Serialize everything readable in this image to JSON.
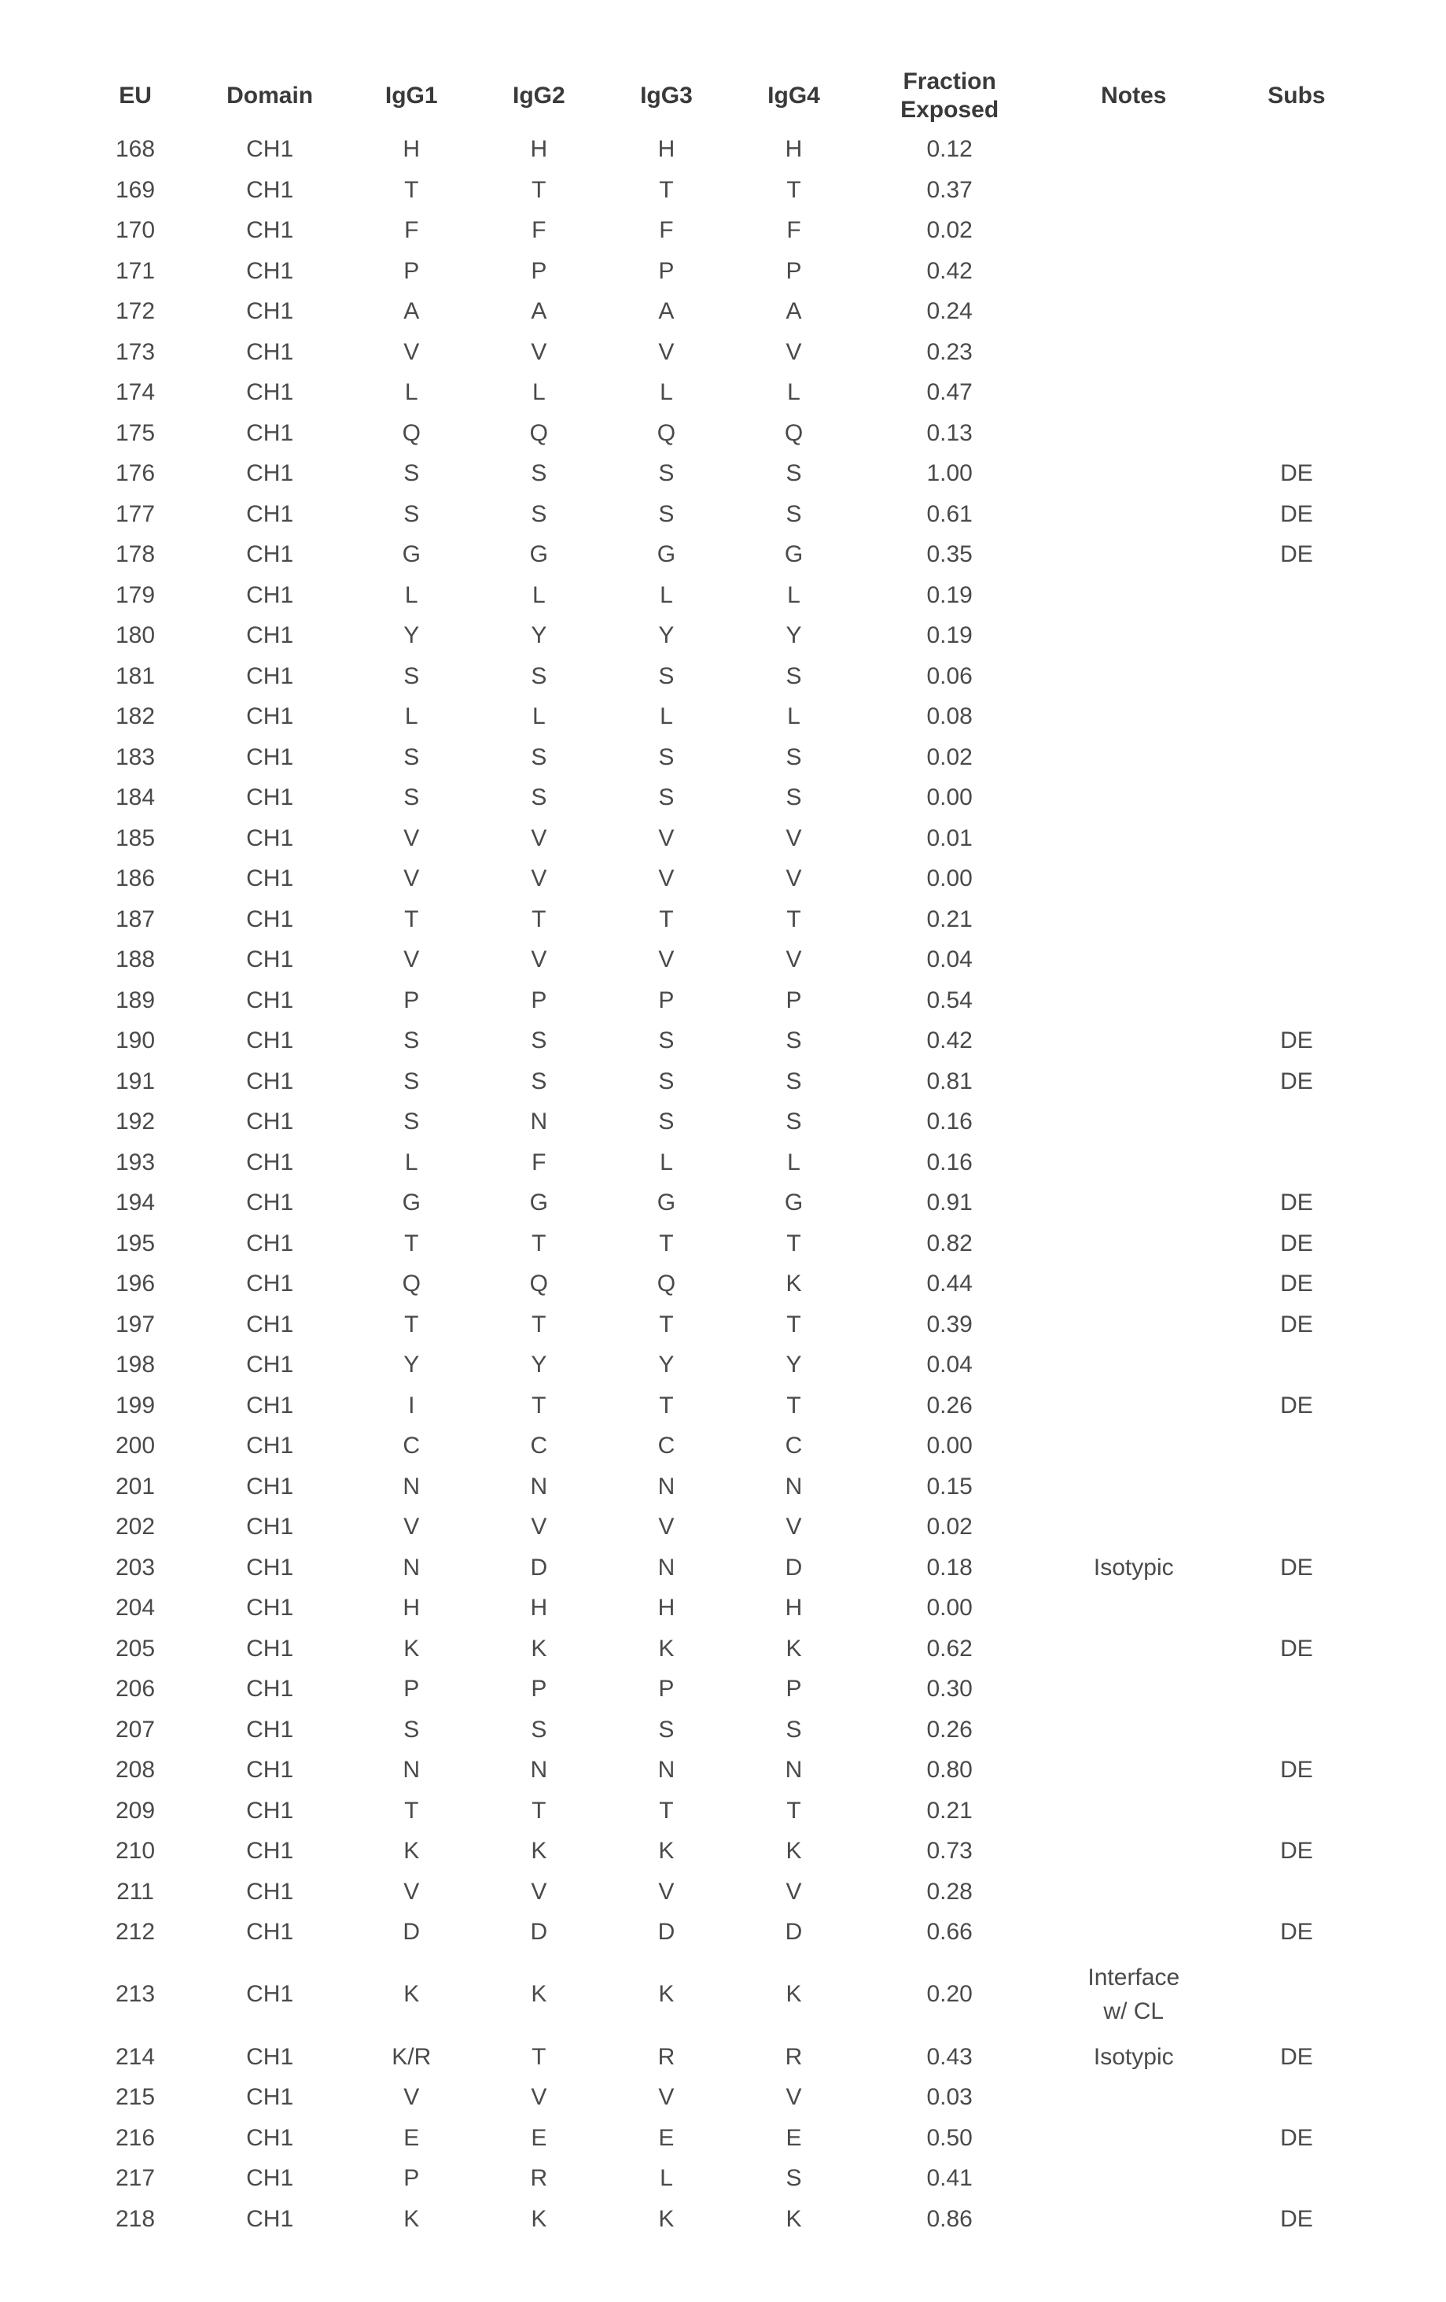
{
  "columns": [
    "EU",
    "Domain",
    "IgG1",
    "IgG2",
    "IgG3",
    "IgG4",
    "Fraction\nExposed",
    "Notes",
    "Subs"
  ],
  "rows": [
    {
      "eu": "168",
      "domain": "CH1",
      "igg1": "H",
      "igg2": "H",
      "igg3": "H",
      "igg4": "H",
      "frac": "0.12",
      "notes": "",
      "subs": ""
    },
    {
      "eu": "169",
      "domain": "CH1",
      "igg1": "T",
      "igg2": "T",
      "igg3": "T",
      "igg4": "T",
      "frac": "0.37",
      "notes": "",
      "subs": ""
    },
    {
      "eu": "170",
      "domain": "CH1",
      "igg1": "F",
      "igg2": "F",
      "igg3": "F",
      "igg4": "F",
      "frac": "0.02",
      "notes": "",
      "subs": ""
    },
    {
      "eu": "171",
      "domain": "CH1",
      "igg1": "P",
      "igg2": "P",
      "igg3": "P",
      "igg4": "P",
      "frac": "0.42",
      "notes": "",
      "subs": ""
    },
    {
      "eu": "172",
      "domain": "CH1",
      "igg1": "A",
      "igg2": "A",
      "igg3": "A",
      "igg4": "A",
      "frac": "0.24",
      "notes": "",
      "subs": ""
    },
    {
      "eu": "173",
      "domain": "CH1",
      "igg1": "V",
      "igg2": "V",
      "igg3": "V",
      "igg4": "V",
      "frac": "0.23",
      "notes": "",
      "subs": ""
    },
    {
      "eu": "174",
      "domain": "CH1",
      "igg1": "L",
      "igg2": "L",
      "igg3": "L",
      "igg4": "L",
      "frac": "0.47",
      "notes": "",
      "subs": ""
    },
    {
      "eu": "175",
      "domain": "CH1",
      "igg1": "Q",
      "igg2": "Q",
      "igg3": "Q",
      "igg4": "Q",
      "frac": "0.13",
      "notes": "",
      "subs": ""
    },
    {
      "eu": "176",
      "domain": "CH1",
      "igg1": "S",
      "igg2": "S",
      "igg3": "S",
      "igg4": "S",
      "frac": "1.00",
      "notes": "",
      "subs": "DE"
    },
    {
      "eu": "177",
      "domain": "CH1",
      "igg1": "S",
      "igg2": "S",
      "igg3": "S",
      "igg4": "S",
      "frac": "0.61",
      "notes": "",
      "subs": "DE"
    },
    {
      "eu": "178",
      "domain": "CH1",
      "igg1": "G",
      "igg2": "G",
      "igg3": "G",
      "igg4": "G",
      "frac": "0.35",
      "notes": "",
      "subs": "DE"
    },
    {
      "eu": "179",
      "domain": "CH1",
      "igg1": "L",
      "igg2": "L",
      "igg3": "L",
      "igg4": "L",
      "frac": "0.19",
      "notes": "",
      "subs": ""
    },
    {
      "eu": "180",
      "domain": "CH1",
      "igg1": "Y",
      "igg2": "Y",
      "igg3": "Y",
      "igg4": "Y",
      "frac": "0.19",
      "notes": "",
      "subs": ""
    },
    {
      "eu": "181",
      "domain": "CH1",
      "igg1": "S",
      "igg2": "S",
      "igg3": "S",
      "igg4": "S",
      "frac": "0.06",
      "notes": "",
      "subs": ""
    },
    {
      "eu": "182",
      "domain": "CH1",
      "igg1": "L",
      "igg2": "L",
      "igg3": "L",
      "igg4": "L",
      "frac": "0.08",
      "notes": "",
      "subs": ""
    },
    {
      "eu": "183",
      "domain": "CH1",
      "igg1": "S",
      "igg2": "S",
      "igg3": "S",
      "igg4": "S",
      "frac": "0.02",
      "notes": "",
      "subs": ""
    },
    {
      "eu": "184",
      "domain": "CH1",
      "igg1": "S",
      "igg2": "S",
      "igg3": "S",
      "igg4": "S",
      "frac": "0.00",
      "notes": "",
      "subs": ""
    },
    {
      "eu": "185",
      "domain": "CH1",
      "igg1": "V",
      "igg2": "V",
      "igg3": "V",
      "igg4": "V",
      "frac": "0.01",
      "notes": "",
      "subs": ""
    },
    {
      "eu": "186",
      "domain": "CH1",
      "igg1": "V",
      "igg2": "V",
      "igg3": "V",
      "igg4": "V",
      "frac": "0.00",
      "notes": "",
      "subs": ""
    },
    {
      "eu": "187",
      "domain": "CH1",
      "igg1": "T",
      "igg2": "T",
      "igg3": "T",
      "igg4": "T",
      "frac": "0.21",
      "notes": "",
      "subs": ""
    },
    {
      "eu": "188",
      "domain": "CH1",
      "igg1": "V",
      "igg2": "V",
      "igg3": "V",
      "igg4": "V",
      "frac": "0.04",
      "notes": "",
      "subs": ""
    },
    {
      "eu": "189",
      "domain": "CH1",
      "igg1": "P",
      "igg2": "P",
      "igg3": "P",
      "igg4": "P",
      "frac": "0.54",
      "notes": "",
      "subs": ""
    },
    {
      "eu": "190",
      "domain": "CH1",
      "igg1": "S",
      "igg2": "S",
      "igg3": "S",
      "igg4": "S",
      "frac": "0.42",
      "notes": "",
      "subs": "DE"
    },
    {
      "eu": "191",
      "domain": "CH1",
      "igg1": "S",
      "igg2": "S",
      "igg3": "S",
      "igg4": "S",
      "frac": "0.81",
      "notes": "",
      "subs": "DE"
    },
    {
      "eu": "192",
      "domain": "CH1",
      "igg1": "S",
      "igg2": "N",
      "igg3": "S",
      "igg4": "S",
      "frac": "0.16",
      "notes": "",
      "subs": ""
    },
    {
      "eu": "193",
      "domain": "CH1",
      "igg1": "L",
      "igg2": "F",
      "igg3": "L",
      "igg4": "L",
      "frac": "0.16",
      "notes": "",
      "subs": ""
    },
    {
      "eu": "194",
      "domain": "CH1",
      "igg1": "G",
      "igg2": "G",
      "igg3": "G",
      "igg4": "G",
      "frac": "0.91",
      "notes": "",
      "subs": "DE"
    },
    {
      "eu": "195",
      "domain": "CH1",
      "igg1": "T",
      "igg2": "T",
      "igg3": "T",
      "igg4": "T",
      "frac": "0.82",
      "notes": "",
      "subs": "DE"
    },
    {
      "eu": "196",
      "domain": "CH1",
      "igg1": "Q",
      "igg2": "Q",
      "igg3": "Q",
      "igg4": "K",
      "frac": "0.44",
      "notes": "",
      "subs": "DE"
    },
    {
      "eu": "197",
      "domain": "CH1",
      "igg1": "T",
      "igg2": "T",
      "igg3": "T",
      "igg4": "T",
      "frac": "0.39",
      "notes": "",
      "subs": "DE"
    },
    {
      "eu": "198",
      "domain": "CH1",
      "igg1": "Y",
      "igg2": "Y",
      "igg3": "Y",
      "igg4": "Y",
      "frac": "0.04",
      "notes": "",
      "subs": ""
    },
    {
      "eu": "199",
      "domain": "CH1",
      "igg1": "I",
      "igg2": "T",
      "igg3": "T",
      "igg4": "T",
      "frac": "0.26",
      "notes": "",
      "subs": "DE"
    },
    {
      "eu": "200",
      "domain": "CH1",
      "igg1": "C",
      "igg2": "C",
      "igg3": "C",
      "igg4": "C",
      "frac": "0.00",
      "notes": "",
      "subs": ""
    },
    {
      "eu": "201",
      "domain": "CH1",
      "igg1": "N",
      "igg2": "N",
      "igg3": "N",
      "igg4": "N",
      "frac": "0.15",
      "notes": "",
      "subs": ""
    },
    {
      "eu": "202",
      "domain": "CH1",
      "igg1": "V",
      "igg2": "V",
      "igg3": "V",
      "igg4": "V",
      "frac": "0.02",
      "notes": "",
      "subs": ""
    },
    {
      "eu": "203",
      "domain": "CH1",
      "igg1": "N",
      "igg2": "D",
      "igg3": "N",
      "igg4": "D",
      "frac": "0.18",
      "notes": "Isotypic",
      "subs": "DE"
    },
    {
      "eu": "204",
      "domain": "CH1",
      "igg1": "H",
      "igg2": "H",
      "igg3": "H",
      "igg4": "H",
      "frac": "0.00",
      "notes": "",
      "subs": ""
    },
    {
      "eu": "205",
      "domain": "CH1",
      "igg1": "K",
      "igg2": "K",
      "igg3": "K",
      "igg4": "K",
      "frac": "0.62",
      "notes": "",
      "subs": "DE"
    },
    {
      "eu": "206",
      "domain": "CH1",
      "igg1": "P",
      "igg2": "P",
      "igg3": "P",
      "igg4": "P",
      "frac": "0.30",
      "notes": "",
      "subs": ""
    },
    {
      "eu": "207",
      "domain": "CH1",
      "igg1": "S",
      "igg2": "S",
      "igg3": "S",
      "igg4": "S",
      "frac": "0.26",
      "notes": "",
      "subs": ""
    },
    {
      "eu": "208",
      "domain": "CH1",
      "igg1": "N",
      "igg2": "N",
      "igg3": "N",
      "igg4": "N",
      "frac": "0.80",
      "notes": "",
      "subs": "DE"
    },
    {
      "eu": "209",
      "domain": "CH1",
      "igg1": "T",
      "igg2": "T",
      "igg3": "T",
      "igg4": "T",
      "frac": "0.21",
      "notes": "",
      "subs": ""
    },
    {
      "eu": "210",
      "domain": "CH1",
      "igg1": "K",
      "igg2": "K",
      "igg3": "K",
      "igg4": "K",
      "frac": "0.73",
      "notes": "",
      "subs": "DE"
    },
    {
      "eu": "211",
      "domain": "CH1",
      "igg1": "V",
      "igg2": "V",
      "igg3": "V",
      "igg4": "V",
      "frac": "0.28",
      "notes": "",
      "subs": ""
    },
    {
      "eu": "212",
      "domain": "CH1",
      "igg1": "D",
      "igg2": "D",
      "igg3": "D",
      "igg4": "D",
      "frac": "0.66",
      "notes": "",
      "subs": "DE"
    },
    {
      "eu": "213",
      "domain": "CH1",
      "igg1": "K",
      "igg2": "K",
      "igg3": "K",
      "igg4": "K",
      "frac": "0.20",
      "notes": "Interface\nw/ CL",
      "subs": "",
      "tall": true
    },
    {
      "eu": "214",
      "domain": "CH1",
      "igg1": "K/R",
      "igg2": "T",
      "igg3": "R",
      "igg4": "R",
      "frac": "0.43",
      "notes": "Isotypic",
      "subs": "DE"
    },
    {
      "eu": "215",
      "domain": "CH1",
      "igg1": "V",
      "igg2": "V",
      "igg3": "V",
      "igg4": "V",
      "frac": "0.03",
      "notes": "",
      "subs": ""
    },
    {
      "eu": "216",
      "domain": "CH1",
      "igg1": "E",
      "igg2": "E",
      "igg3": "E",
      "igg4": "E",
      "frac": "0.50",
      "notes": "",
      "subs": "DE"
    },
    {
      "eu": "217",
      "domain": "CH1",
      "igg1": "P",
      "igg2": "R",
      "igg3": "L",
      "igg4": "S",
      "frac": "0.41",
      "notes": "",
      "subs": ""
    },
    {
      "eu": "218",
      "domain": "CH1",
      "igg1": "K",
      "igg2": "K",
      "igg3": "K",
      "igg4": "K",
      "frac": "0.86",
      "notes": "",
      "subs": "DE"
    }
  ]
}
